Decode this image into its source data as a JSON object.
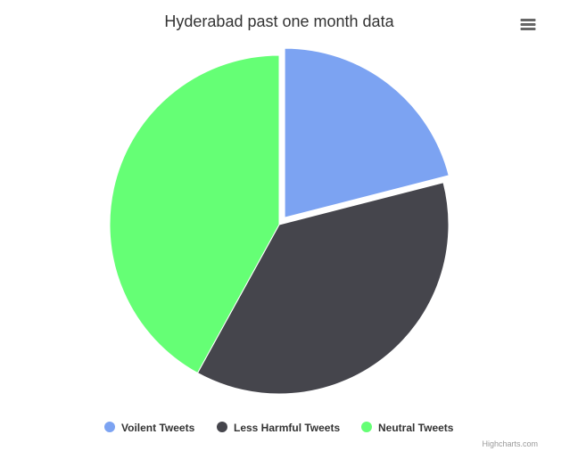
{
  "chart_data": {
    "type": "pie",
    "title": "Hyderabad past one month data",
    "categories": [
      "Voilent Tweets",
      "Less Harmful Tweets",
      "Neutral Tweets"
    ],
    "values": [
      21,
      37,
      42
    ],
    "unit": "%",
    "sliced": [
      true,
      false,
      false
    ],
    "colors": [
      "#7ca3f2",
      "#45454c",
      "#65ff75"
    ],
    "legend_position": "bottom-center"
  },
  "credits": "Highcharts.com",
  "menu_icon": "hamburger-menu-icon"
}
